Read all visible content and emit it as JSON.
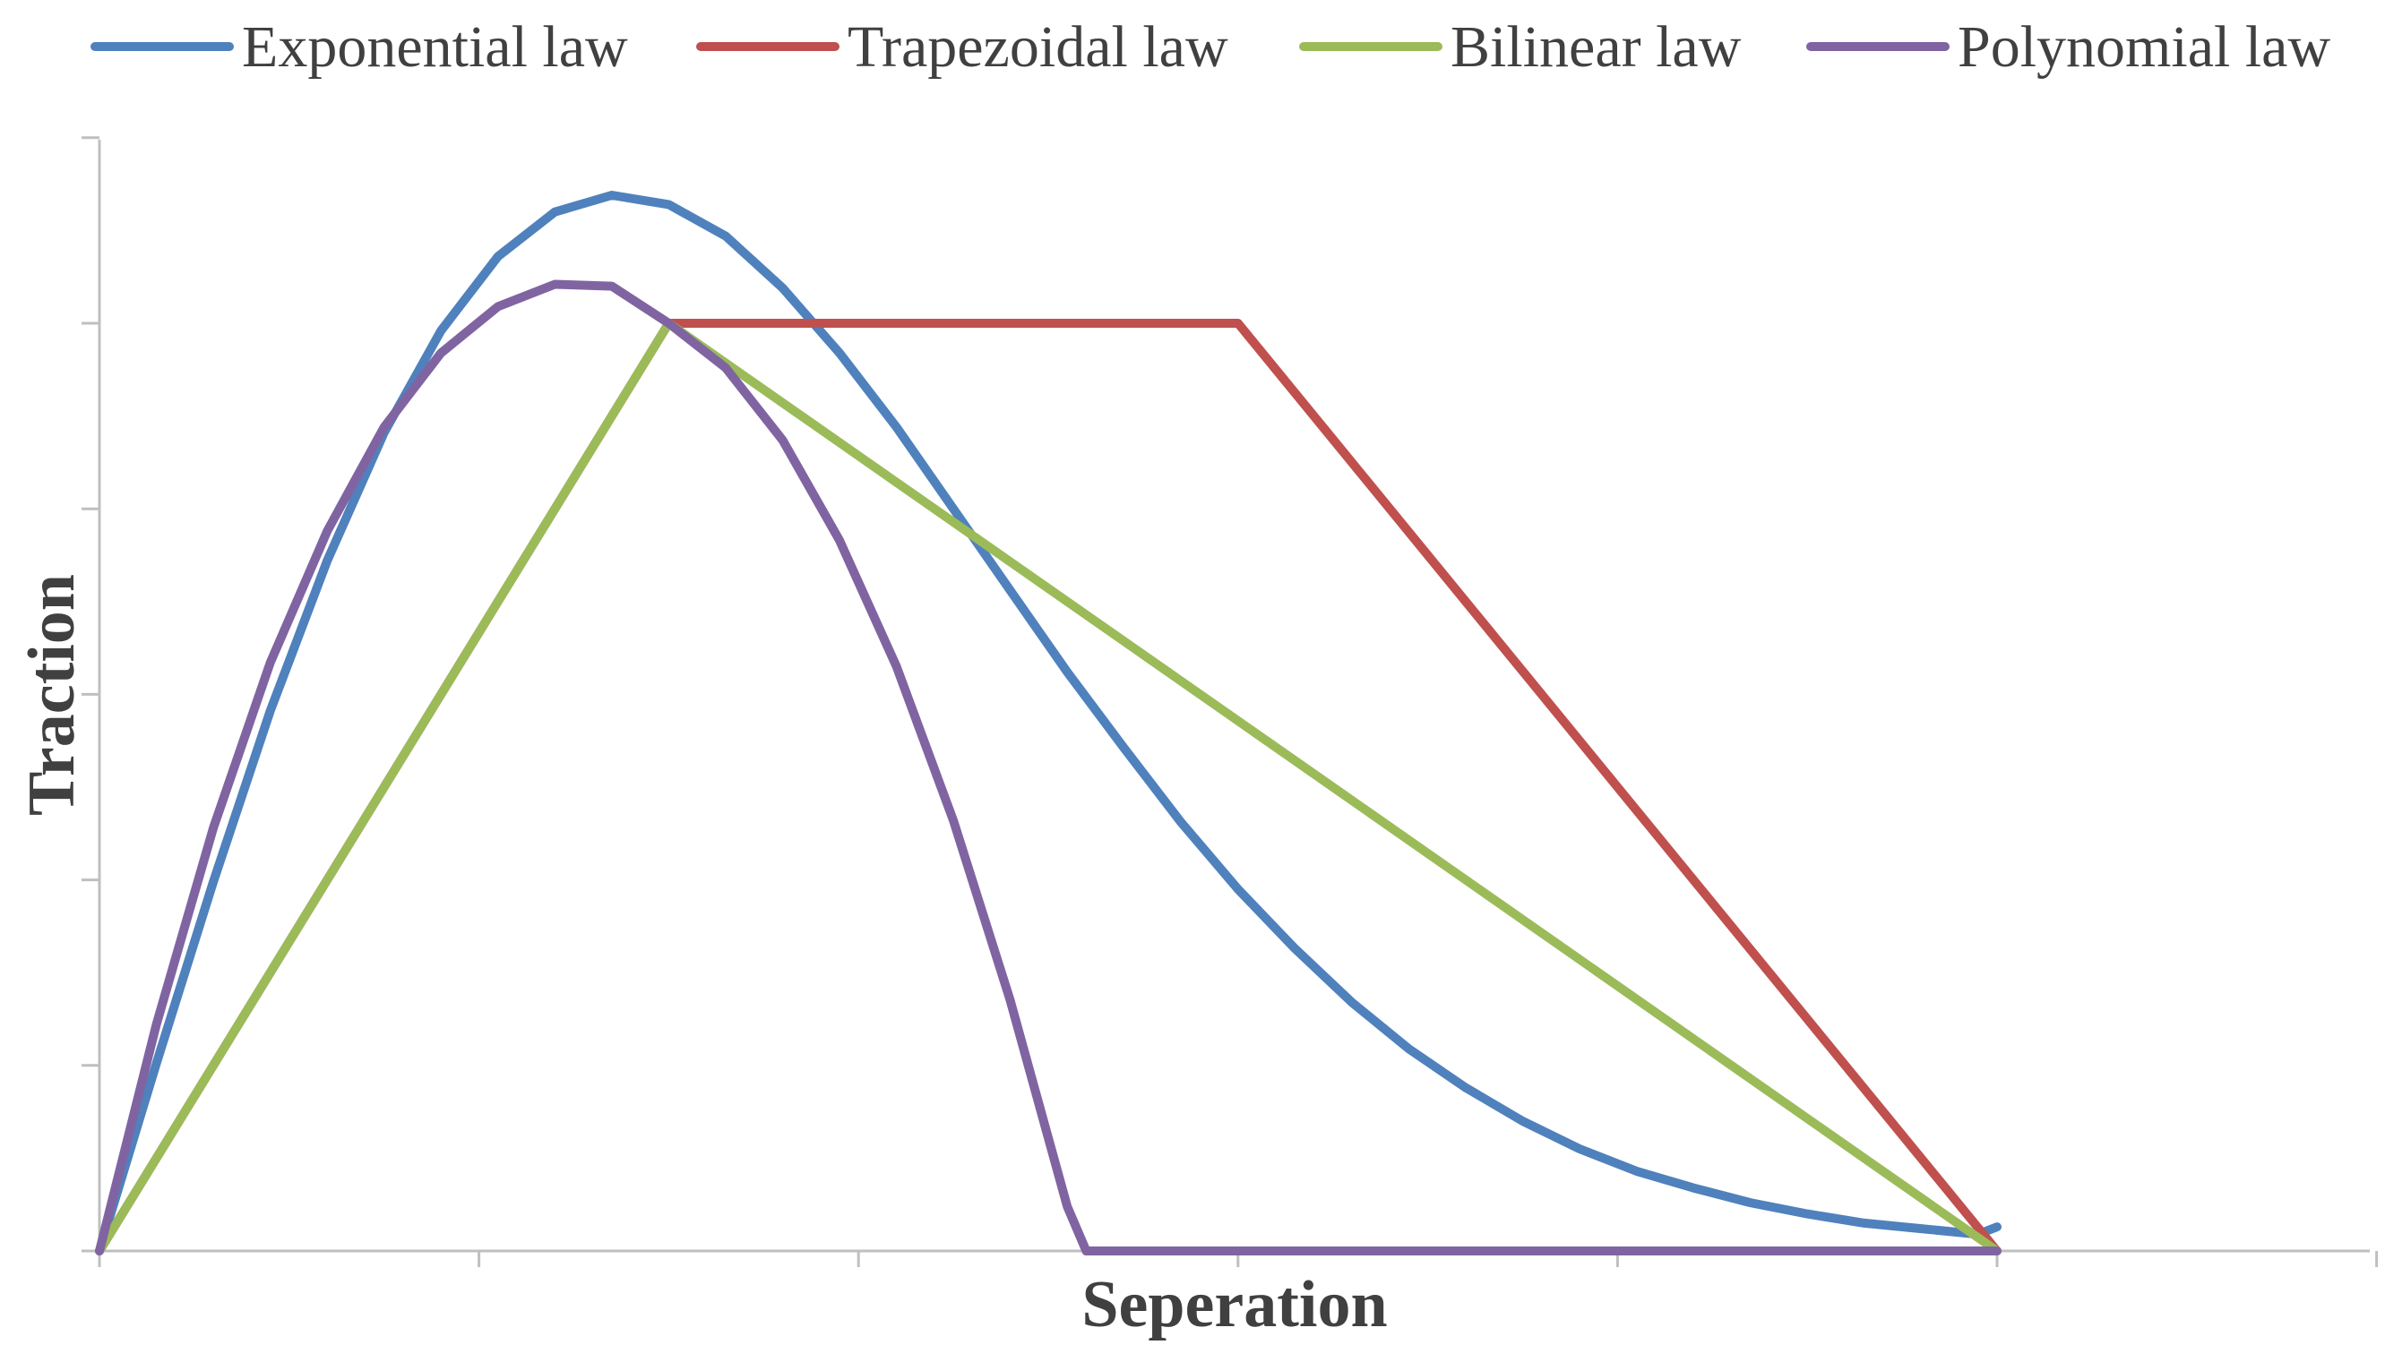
{
  "chart_data": {
    "type": "line",
    "title": "",
    "xlabel": "Seperation",
    "ylabel": "Traction",
    "xlim": [
      0,
      6
    ],
    "ylim": [
      0,
      6
    ],
    "x_ticks_count": 7,
    "y_ticks_count": 7,
    "tick_labels_shown": false,
    "grid": false,
    "legend_position": "top",
    "series": [
      {
        "name": "Exponential law",
        "color": "#4f81bd",
        "x": [
          0,
          0.15,
          0.3,
          0.45,
          0.6,
          0.75,
          0.9,
          1.05,
          1.2,
          1.35,
          1.5,
          1.65,
          1.8,
          1.95,
          2.1,
          2.25,
          2.4,
          2.55,
          2.7,
          2.85,
          3.0,
          3.15,
          3.3,
          3.45,
          3.6,
          3.75,
          3.9,
          4.05,
          4.2,
          4.35,
          4.5,
          4.65,
          4.8,
          4.95,
          5.0
        ],
        "y": [
          0,
          1.01,
          1.99,
          2.91,
          3.72,
          4.41,
          4.96,
          5.36,
          5.6,
          5.69,
          5.64,
          5.47,
          5.19,
          4.84,
          4.44,
          4.0,
          3.56,
          3.12,
          2.71,
          2.31,
          1.95,
          1.63,
          1.34,
          1.09,
          0.88,
          0.7,
          0.55,
          0.43,
          0.34,
          0.26,
          0.2,
          0.15,
          0.12,
          0.09,
          0.13
        ]
      },
      {
        "name": "Trapezoidal law",
        "color": "#c0504d",
        "x": [
          0,
          1.5,
          3.0,
          5.0
        ],
        "y": [
          0,
          5.0,
          5.0,
          0
        ]
      },
      {
        "name": "Bilinear law",
        "color": "#9bbb59",
        "x": [
          0,
          1.5,
          5.0
        ],
        "y": [
          0,
          5.0,
          0
        ]
      },
      {
        "name": "Polynomial law",
        "color": "#8064a2",
        "x": [
          0,
          0.15,
          0.3,
          0.45,
          0.6,
          0.75,
          0.9,
          1.05,
          1.2,
          1.35,
          1.5,
          1.65,
          1.8,
          1.95,
          2.1,
          2.25,
          2.4,
          2.55,
          2.6,
          3.0,
          3.5,
          4.0,
          4.5,
          5.0
        ],
        "y": [
          0,
          1.22,
          2.28,
          3.17,
          3.88,
          4.44,
          4.84,
          5.09,
          5.21,
          5.2,
          5.0,
          4.76,
          4.37,
          3.83,
          3.15,
          2.32,
          1.35,
          0.24,
          0,
          0,
          0,
          0,
          0,
          0
        ]
      }
    ]
  }
}
